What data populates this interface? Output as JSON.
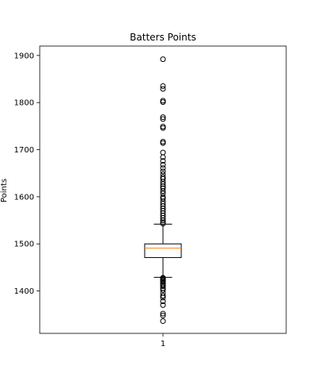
{
  "chart_data": {
    "type": "box",
    "title": "Batters Points",
    "xlabel": "",
    "ylabel": "Points",
    "categories": [
      "1"
    ],
    "ylim": [
      1310,
      1920
    ],
    "y_ticks": [
      1400,
      1500,
      1600,
      1700,
      1800,
      1900
    ],
    "grid": false,
    "box": {
      "q1": 1471,
      "median": 1491,
      "q3": 1500,
      "whisker_low": 1429,
      "whisker_high": 1542
    },
    "outliers": [
      1336,
      1348,
      1352,
      1370,
      1378,
      1386,
      1390,
      1396,
      1402,
      1406,
      1410,
      1413,
      1416,
      1419,
      1421,
      1423,
      1425,
      1427,
      1428,
      1543,
      1546,
      1550,
      1555,
      1560,
      1565,
      1570,
      1575,
      1580,
      1585,
      1590,
      1596,
      1600,
      1607,
      1612,
      1618,
      1622,
      1627,
      1632,
      1638,
      1642,
      1648,
      1654,
      1661,
      1668,
      1676,
      1684,
      1694,
      1714,
      1717,
      1746,
      1749,
      1765,
      1769,
      1801,
      1804,
      1829,
      1835,
      1892
    ],
    "colors": {
      "box": "#000000",
      "median": "#ff7f0e",
      "outlier": "#000000"
    }
  }
}
